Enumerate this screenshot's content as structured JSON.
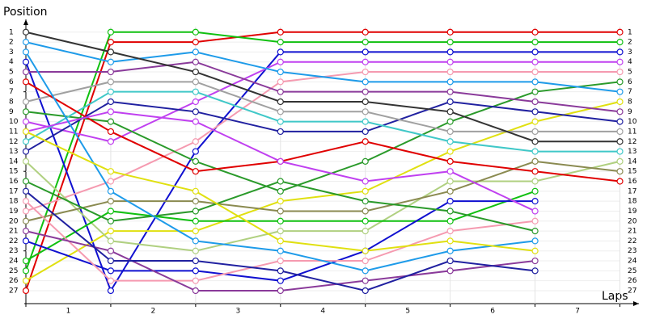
{
  "chart_data": {
    "type": "line",
    "ylabel": "Position",
    "xlabel": "Laps",
    "x": [
      0,
      1,
      2,
      3,
      4,
      5,
      6,
      7
    ],
    "xlim": [
      0,
      7.3
    ],
    "xticks": [
      {
        "value": 0.5,
        "label": "1"
      },
      {
        "value": 1.5,
        "label": "2"
      },
      {
        "value": 2.5,
        "label": "3"
      },
      {
        "value": 3.5,
        "label": "4"
      },
      {
        "value": 4.5,
        "label": "5"
      },
      {
        "value": 5.5,
        "label": "6"
      },
      {
        "value": 6.5,
        "label": "7"
      }
    ],
    "ylim": [
      28.3,
      -0.2
    ],
    "yticks": [
      1,
      2,
      3,
      4,
      5,
      6,
      7,
      8,
      9,
      10,
      11,
      12,
      13,
      14,
      15,
      16,
      17,
      18,
      19,
      20,
      21,
      22,
      23,
      24,
      25,
      26,
      27
    ],
    "grid": true,
    "series": [
      {
        "color": "#e00000",
        "values": [
          27,
          2,
          2,
          1,
          1,
          1,
          1,
          1
        ]
      },
      {
        "color": "#10c010",
        "values": [
          25,
          1,
          1,
          2,
          2,
          2,
          2,
          2
        ]
      },
      {
        "color": "#1010d0",
        "values": [
          4,
          27,
          13,
          3,
          3,
          3,
          3,
          3
        ]
      },
      {
        "color": "#c040f0",
        "values": [
          10,
          12,
          8,
          4,
          4,
          4,
          4,
          4
        ]
      },
      {
        "color": "#f59ab0",
        "values": [
          19,
          16,
          12,
          6,
          5,
          5,
          5,
          5
        ]
      },
      {
        "color": "#2a9a2a",
        "values": [
          9,
          10,
          14,
          17,
          14,
          10,
          7,
          6
        ]
      },
      {
        "color": "#1e9be9",
        "values": [
          2,
          4,
          3,
          5,
          6,
          6,
          6,
          7
        ]
      },
      {
        "color": "#e0e010",
        "values": [
          26,
          21,
          21,
          18,
          17,
          13,
          10,
          8
        ]
      },
      {
        "color": "#8a3a9a",
        "values": [
          5,
          5,
          4,
          7,
          7,
          7,
          8,
          9
        ]
      },
      {
        "color": "#2020a0",
        "values": [
          13,
          8,
          9,
          11,
          11,
          8,
          9,
          10
        ]
      },
      {
        "color": "#a0a0a0",
        "values": [
          8,
          6,
          6,
          9,
          9,
          11,
          11,
          11
        ]
      },
      {
        "color": "#333333",
        "values": [
          1,
          3,
          5,
          8,
          8,
          9,
          12,
          12
        ]
      },
      {
        "color": "#40c8c8",
        "values": [
          12,
          7,
          7,
          10,
          10,
          12,
          13,
          13
        ]
      },
      {
        "color": "#b0d080",
        "values": [
          14,
          22,
          23,
          21,
          21,
          16,
          16,
          14
        ]
      },
      {
        "color": "#8a8a50",
        "values": [
          20,
          18,
          18,
          19,
          19,
          17,
          14,
          15
        ]
      },
      {
        "color": "#e00000",
        "values": [
          6,
          11,
          15,
          14,
          12,
          14,
          15,
          16
        ]
      },
      {
        "color": "#10c010",
        "values": [
          24,
          19,
          20,
          20,
          20,
          20,
          17,
          null
        ]
      },
      {
        "color": "#1010d0",
        "values": [
          22,
          25,
          25,
          26,
          23,
          18,
          18,
          null
        ]
      },
      {
        "color": "#c040f0",
        "values": [
          11,
          9,
          10,
          14,
          16,
          15,
          19,
          null
        ]
      },
      {
        "color": "#f59ab0",
        "values": [
          18,
          26,
          26,
          24,
          24,
          21,
          20,
          null
        ]
      },
      {
        "color": "#2a9a2a",
        "values": [
          16,
          20,
          19,
          16,
          18,
          19,
          21,
          null
        ]
      },
      {
        "color": "#1e9be9",
        "values": [
          3,
          17,
          22,
          23,
          25,
          23,
          22,
          null
        ]
      },
      {
        "color": "#e0e010",
        "values": [
          11,
          15,
          17,
          22,
          23,
          22,
          23,
          null
        ]
      },
      {
        "color": "#8a3a9a",
        "values": [
          21,
          23,
          27,
          27,
          26,
          25,
          24,
          null
        ]
      },
      {
        "color": "#2020a0",
        "values": [
          17,
          24,
          24,
          25,
          27,
          24,
          25,
          null
        ]
      }
    ]
  }
}
